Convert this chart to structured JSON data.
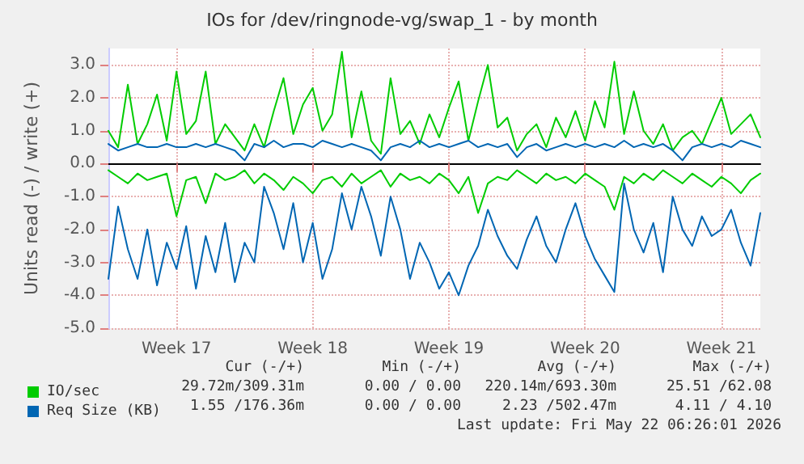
{
  "chart_data": {
    "type": "line",
    "title": "IOs for /dev/ringnode-vg/swap_1 - by month",
    "ylabel": "Units read (-) / write (+)",
    "categories": [
      null,
      null,
      null,
      null,
      null,
      null,
      null,
      "Week 17",
      null,
      null,
      null,
      null,
      null,
      null,
      null,
      null,
      null,
      null,
      null,
      null,
      null,
      "Week 18",
      null,
      null,
      null,
      null,
      null,
      null,
      null,
      null,
      null,
      null,
      null,
      null,
      null,
      "Week 19",
      null,
      null,
      null,
      null,
      null,
      null,
      null,
      null,
      null,
      null,
      null,
      null,
      null,
      "Week 20",
      null,
      null,
      null,
      null,
      null,
      null,
      null,
      null,
      null,
      null,
      null,
      null,
      null,
      "Week 21",
      null,
      null,
      null,
      null
    ],
    "series": [
      {
        "color": "#00cc00",
        "values": [
          -0.2,
          -0.4,
          -0.6,
          -0.3,
          -0.5,
          -0.4,
          -0.3,
          -1.6,
          -0.5,
          -0.4,
          -1.2,
          -0.3,
          -0.5,
          -0.4,
          -0.2,
          -0.6,
          -0.3,
          -0.5,
          -0.8,
          -0.4,
          -0.6,
          -0.9,
          -0.5,
          -0.4,
          -0.7,
          -0.3,
          -0.6,
          -0.4,
          -0.2,
          -0.7,
          -0.3,
          -0.5,
          -0.4,
          -0.6,
          -0.3,
          -0.5,
          -0.9,
          -0.4,
          -1.5,
          -0.6,
          -0.4,
          -0.5,
          -0.2,
          -0.4,
          -0.6,
          -0.3,
          -0.5,
          -0.4,
          -0.6,
          -0.3,
          -0.5,
          -0.7,
          -1.4,
          -0.4,
          -0.6,
          -0.3,
          -0.5,
          -0.2,
          -0.4,
          -0.6,
          -0.3,
          -0.5,
          -0.7,
          -0.4,
          -0.6,
          -0.9,
          -0.5,
          -0.3
        ]
      },
      {
        "name": "IO/sec",
        "color": "#00cc00",
        "values": [
          1.0,
          0.5,
          2.4,
          0.6,
          1.2,
          2.1,
          0.7,
          2.8,
          0.9,
          1.3,
          2.8,
          0.6,
          1.2,
          0.8,
          0.4,
          1.2,
          0.5,
          1.6,
          2.6,
          0.9,
          1.8,
          2.3,
          1.0,
          1.5,
          3.4,
          0.8,
          2.2,
          0.7,
          0.3,
          2.6,
          0.9,
          1.3,
          0.6,
          1.5,
          0.8,
          1.7,
          2.5,
          0.7,
          1.9,
          3.0,
          1.1,
          1.4,
          0.4,
          0.9,
          1.2,
          0.5,
          1.4,
          0.8,
          1.6,
          0.7,
          1.9,
          1.1,
          3.1,
          0.9,
          2.2,
          1.0,
          0.6,
          1.2,
          0.4,
          0.8,
          1.0,
          0.6,
          1.3,
          2.0,
          0.9,
          1.2,
          1.5,
          0.8
        ]
      },
      {
        "color": "#0066b3",
        "values": [
          -3.5,
          -1.3,
          -2.6,
          -3.5,
          -2.0,
          -3.7,
          -2.4,
          -3.2,
          -1.9,
          -3.8,
          -2.2,
          -3.3,
          -1.8,
          -3.6,
          -2.4,
          -3.0,
          -0.7,
          -1.5,
          -2.6,
          -1.2,
          -3.0,
          -1.8,
          -3.5,
          -2.6,
          -0.9,
          -2.0,
          -0.7,
          -1.6,
          -2.8,
          -1.0,
          -2.0,
          -3.5,
          -2.4,
          -3.0,
          -3.8,
          -3.3,
          -4.0,
          -3.1,
          -2.5,
          -1.4,
          -2.2,
          -2.8,
          -3.2,
          -2.3,
          -1.6,
          -2.5,
          -3.0,
          -2.0,
          -1.2,
          -2.2,
          -2.9,
          -3.4,
          -3.9,
          -0.6,
          -2.0,
          -2.7,
          -1.8,
          -3.3,
          -1.0,
          -2.0,
          -2.5,
          -1.6,
          -2.2,
          -2.0,
          -1.4,
          -2.4,
          -3.1,
          -1.5
        ]
      },
      {
        "name": "Req Size (KB)",
        "color": "#0066b3",
        "values": [
          0.6,
          0.4,
          0.5,
          0.6,
          0.5,
          0.5,
          0.6,
          0.5,
          0.5,
          0.6,
          0.5,
          0.6,
          0.5,
          0.4,
          0.1,
          0.6,
          0.5,
          0.7,
          0.5,
          0.6,
          0.6,
          0.5,
          0.7,
          0.6,
          0.5,
          0.6,
          0.5,
          0.4,
          0.1,
          0.5,
          0.6,
          0.5,
          0.7,
          0.5,
          0.6,
          0.5,
          0.6,
          0.7,
          0.5,
          0.6,
          0.5,
          0.6,
          0.2,
          0.5,
          0.6,
          0.4,
          0.5,
          0.6,
          0.5,
          0.6,
          0.5,
          0.6,
          0.5,
          0.7,
          0.5,
          0.6,
          0.5,
          0.6,
          0.4,
          0.1,
          0.5,
          0.6,
          0.5,
          0.6,
          0.5,
          0.7,
          0.6,
          0.5
        ]
      }
    ],
    "ylim": [
      -5,
      3.5
    ],
    "yticks": [
      {
        "value": -5,
        "label": "-5.0"
      },
      {
        "value": -4,
        "label": "-4.0"
      },
      {
        "value": -3,
        "label": "-3.0"
      },
      {
        "value": -2,
        "label": "-2.0"
      },
      {
        "value": -1,
        "label": "-1.0"
      },
      {
        "value": 0,
        "label": "0.0"
      },
      {
        "value": 1,
        "label": "1.0"
      },
      {
        "value": 2,
        "label": "2.0"
      },
      {
        "value": 3,
        "label": "3.0"
      }
    ],
    "grid": true,
    "legend": "bottom left",
    "marker": "none",
    "line_style": "solid",
    "annotations": [
      "Cur (-/+)",
      "Min (-/+)",
      "Avg (-/+)",
      "Max (-/+)",
      "29.72m/309.31m",
      "0.00 / 0.00",
      "220.14m/693.30m",
      "25.51 /62.08",
      "1.55 /176.36m",
      "0.00 / 0.00",
      "2.23 /502.47m",
      "4.11 / 4.10",
      "Last update: Fri May 22 06:26:01 2026"
    ]
  }
}
